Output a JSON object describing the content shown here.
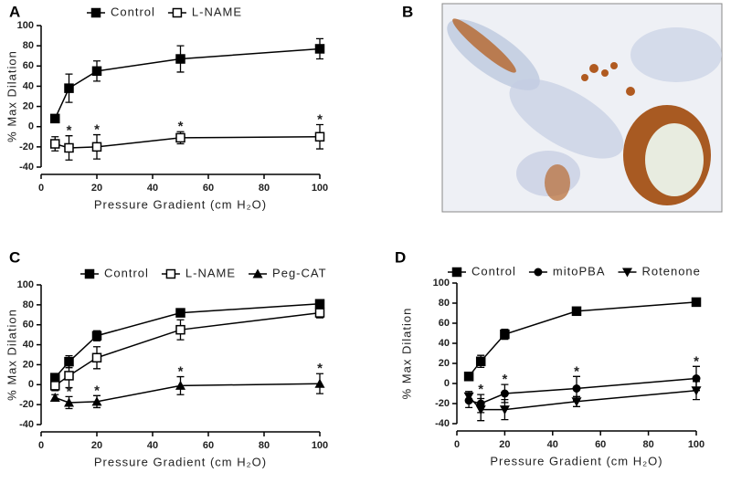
{
  "chart_data": [
    {
      "type": "line",
      "panel": "A",
      "xlabel": "Pressure Gradient (cm H₂O)",
      "ylabel": "% Max Dilation",
      "x": [
        5,
        10,
        20,
        50,
        100
      ],
      "xlim": [
        0,
        100
      ],
      "xticks": [
        0,
        20,
        40,
        60,
        80,
        100
      ],
      "ylim": [
        -40,
        100
      ],
      "yticks": [
        -40,
        -20,
        0,
        20,
        40,
        60,
        80,
        100
      ],
      "series": [
        {
          "name": "Control",
          "color": "#000000",
          "marker": "square",
          "values": [
            8,
            38,
            55,
            67,
            77
          ],
          "errors": [
            3,
            14,
            10,
            13,
            10
          ]
        },
        {
          "name": "L-NAME",
          "color": "#000000",
          "marker": "open-square",
          "values": [
            -17,
            -21,
            -20,
            -11,
            -10
          ],
          "errors": [
            7,
            12,
            12,
            6,
            12
          ]
        }
      ],
      "significance": {
        "label": "*",
        "x": [
          10,
          20,
          50,
          100
        ]
      }
    },
    {
      "type": "image",
      "panel": "B"
    },
    {
      "type": "line",
      "panel": "C",
      "xlabel": "Pressure Gradient (cm H₂O)",
      "ylabel": "% Max Dilation",
      "x": [
        5,
        10,
        20,
        50,
        100
      ],
      "xlim": [
        0,
        100
      ],
      "xticks": [
        0,
        20,
        40,
        60,
        80,
        100
      ],
      "ylim": [
        -40,
        100
      ],
      "yticks": [
        -40,
        -20,
        0,
        20,
        40,
        60,
        80,
        100
      ],
      "series": [
        {
          "name": "Control",
          "color": "#000000",
          "marker": "square",
          "values": [
            7,
            23,
            49,
            72,
            81
          ],
          "errors": [
            3,
            6,
            5,
            3,
            3
          ]
        },
        {
          "name": "L-NAME",
          "color": "#000000",
          "marker": "open-square",
          "values": [
            -1,
            9,
            27,
            55,
            72
          ],
          "errors": [
            5,
            12,
            11,
            10,
            5
          ]
        },
        {
          "name": "Peg-CAT",
          "color": "#000000",
          "marker": "triangle",
          "values": [
            -13,
            -18,
            -17,
            -1,
            1
          ],
          "errors": [
            3,
            6,
            6,
            9,
            10
          ]
        }
      ],
      "significance": {
        "label": "*",
        "x": [
          10,
          20,
          50,
          100
        ]
      }
    },
    {
      "type": "line",
      "panel": "D",
      "xlabel": "Pressure Gradient (cm H₂O)",
      "ylabel": "% Max Dilation",
      "x": [
        5,
        10,
        20,
        50,
        100
      ],
      "xlim": [
        0,
        100
      ],
      "xticks": [
        0,
        20,
        40,
        60,
        80,
        100
      ],
      "ylim": [
        -40,
        100
      ],
      "yticks": [
        -40,
        -20,
        0,
        20,
        40,
        60,
        80,
        100
      ],
      "series": [
        {
          "name": "Control",
          "color": "#000000",
          "marker": "square",
          "values": [
            7,
            22,
            49,
            72,
            81
          ],
          "errors": [
            3,
            6,
            5,
            2,
            3
          ]
        },
        {
          "name": "mitoPBA",
          "color": "#000000",
          "marker": "circle",
          "values": [
            -17,
            -20,
            -10,
            -5,
            5
          ],
          "errors": [
            7,
            9,
            9,
            12,
            12
          ]
        },
        {
          "name": "Rotenone",
          "color": "#000000",
          "marker": "triangle-down",
          "values": [
            -13,
            -26,
            -26,
            -18,
            -7
          ],
          "errors": [
            5,
            11,
            10,
            5,
            9
          ]
        }
      ],
      "significance": {
        "label": "*",
        "x": [
          10,
          20,
          50,
          100
        ]
      }
    }
  ]
}
